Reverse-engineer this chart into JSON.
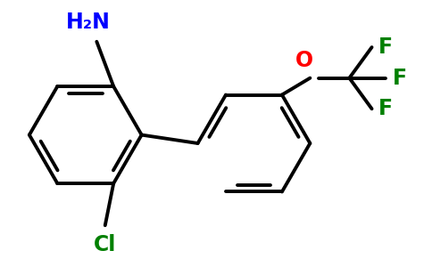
{
  "bg_color": "#ffffff",
  "bond_color": "#000000",
  "bond_width": 2.8,
  "label_nh2": {
    "text": "H₂N",
    "color": "#0000ff",
    "fontsize": 15
  },
  "label_cl": {
    "text": "Cl",
    "color": "#008000",
    "fontsize": 15
  },
  "label_o": {
    "text": "O",
    "color": "#ff0000",
    "fontsize": 15
  },
  "label_f": {
    "text": "F",
    "color": "#008000",
    "fontsize": 15
  }
}
